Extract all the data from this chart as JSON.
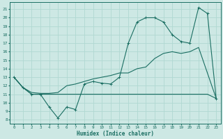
{
  "xlabel": "Humidex (Indice chaleur)",
  "xlim": [
    -0.5,
    23.5
  ],
  "ylim": [
    7.5,
    21.8
  ],
  "yticks": [
    8,
    9,
    10,
    11,
    12,
    13,
    14,
    15,
    16,
    17,
    18,
    19,
    20,
    21
  ],
  "xticks": [
    0,
    1,
    2,
    3,
    4,
    5,
    6,
    7,
    8,
    9,
    10,
    11,
    12,
    13,
    14,
    15,
    16,
    17,
    18,
    19,
    20,
    21,
    22,
    23
  ],
  "bg_color": "#cde8e4",
  "grid_color": "#b0d8d2",
  "line_color": "#1a6e62",
  "line1_x": [
    0,
    1,
    2,
    3,
    4,
    5,
    6,
    7,
    8,
    9,
    10,
    11,
    12,
    13,
    14,
    15,
    16,
    17,
    18,
    19,
    20,
    21,
    22,
    23
  ],
  "line1_y": [
    13.0,
    11.8,
    11.0,
    11.0,
    9.5,
    8.2,
    9.5,
    9.2,
    12.2,
    12.5,
    12.3,
    12.2,
    13.0,
    17.0,
    19.5,
    20.0,
    20.0,
    19.5,
    18.0,
    17.2,
    17.0,
    21.2,
    20.5,
    10.5
  ],
  "line2_x": [
    0,
    1,
    2,
    3,
    4,
    5,
    6,
    7,
    8,
    9,
    10,
    11,
    12,
    13,
    14,
    15,
    16,
    17,
    18,
    19,
    20,
    21,
    22,
    23
  ],
  "line2_y": [
    13.0,
    11.8,
    11.2,
    11.1,
    11.1,
    11.2,
    12.0,
    12.2,
    12.5,
    12.8,
    13.0,
    13.2,
    13.5,
    13.5,
    14.0,
    14.2,
    15.2,
    15.8,
    16.0,
    15.8,
    16.0,
    16.5,
    13.5,
    10.5
  ],
  "line3_x": [
    0,
    1,
    2,
    3,
    4,
    5,
    6,
    7,
    8,
    9,
    10,
    11,
    12,
    13,
    14,
    15,
    16,
    17,
    18,
    19,
    20,
    21,
    22,
    23
  ],
  "line3_y": [
    13.0,
    11.8,
    11.0,
    11.0,
    11.0,
    11.0,
    11.0,
    11.0,
    11.0,
    11.0,
    11.0,
    11.0,
    11.0,
    11.0,
    11.0,
    11.0,
    11.0,
    11.0,
    11.0,
    11.0,
    11.0,
    11.0,
    11.0,
    10.5
  ]
}
